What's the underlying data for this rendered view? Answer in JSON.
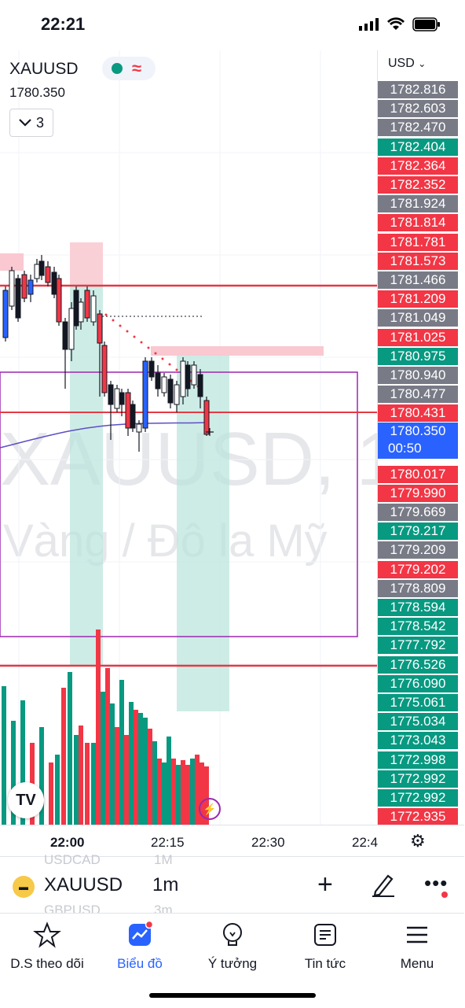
{
  "status_bar": {
    "time": "22:21"
  },
  "symbol": {
    "name": "XAUUSD",
    "price": "1780.350",
    "collapse_label": "3",
    "status_dot_color": "#089981",
    "status_wave_icon": "≈"
  },
  "scale": {
    "currency": "USD",
    "labels": [
      {
        "text": "1782.816",
        "color": "#787b86"
      },
      {
        "text": "1782.603",
        "color": "#787b86"
      },
      {
        "text": "1782.470",
        "color": "#787b86"
      },
      {
        "text": "1782.404",
        "color": "#089981"
      },
      {
        "text": "1782.364",
        "color": "#f23645"
      },
      {
        "text": "1782.352",
        "color": "#f23645"
      },
      {
        "text": "1781.924",
        "color": "#787b86"
      },
      {
        "text": "1781.814",
        "color": "#f23645"
      },
      {
        "text": "1781.781",
        "color": "#f23645"
      },
      {
        "text": "1781.573",
        "color": "#f23645"
      },
      {
        "text": "1781.466",
        "color": "#787b86"
      },
      {
        "text": "1781.209",
        "color": "#f23645"
      },
      {
        "text": "1781.049",
        "color": "#787b86"
      },
      {
        "text": "1781.025",
        "color": "#f23645"
      },
      {
        "text": "1780.975",
        "color": "#089981"
      },
      {
        "text": "1780.940",
        "color": "#787b86"
      },
      {
        "text": "1780.477",
        "color": "#787b86"
      },
      {
        "text": "1780.431",
        "color": "#f23645"
      }
    ],
    "current": {
      "price": "1780.350",
      "countdown": "00:50",
      "color": "#2962ff"
    },
    "labels_below": [
      {
        "text": "1780.017",
        "color": "#f23645"
      },
      {
        "text": "1779.990",
        "color": "#f23645"
      },
      {
        "text": "1779.669",
        "color": "#787b86"
      },
      {
        "text": "1779.217",
        "color": "#089981"
      },
      {
        "text": "1779.209",
        "color": "#787b86"
      },
      {
        "text": "1779.202",
        "color": "#f23645"
      },
      {
        "text": "1778.809",
        "color": "#787b86"
      },
      {
        "text": "1778.594",
        "color": "#089981"
      },
      {
        "text": "1778.542",
        "color": "#089981"
      },
      {
        "text": "1777.792",
        "color": "#089981"
      },
      {
        "text": "1776.526",
        "color": "#089981"
      },
      {
        "text": "1776.090",
        "color": "#089981"
      },
      {
        "text": "1775.061",
        "color": "#089981"
      },
      {
        "text": "1775.034",
        "color": "#089981"
      },
      {
        "text": "1773.043",
        "color": "#089981"
      },
      {
        "text": "1772.998",
        "color": "#089981"
      },
      {
        "text": "1772.992",
        "color": "#089981"
      },
      {
        "text": "1772.992",
        "color": "#089981"
      },
      {
        "text": "1772.935",
        "color": "#f23645"
      }
    ]
  },
  "watermark": {
    "line1": "XAUUSD, 1",
    "line2": "Vàng / Đô la Mỹ"
  },
  "time_axis": [
    "22:00",
    "22:15",
    "22:30",
    "22:4"
  ],
  "toolbar": {
    "symbol": "XAUUSD",
    "interval": "1m",
    "ghost_above": "USDCAD",
    "ghost_above_interval": "1M",
    "ghost_below": "GBPUSD",
    "ghost_below_interval": "3m"
  },
  "nav": [
    {
      "label": "D.S theo dõi",
      "icon": "star-icon"
    },
    {
      "label": "Biểu đồ",
      "icon": "chart-icon"
    },
    {
      "label": "Ý tưởng",
      "icon": "lightbulb-icon"
    },
    {
      "label": "Tin tức",
      "icon": "news-icon"
    },
    {
      "label": "Menu",
      "icon": "hamburger-icon"
    }
  ],
  "colors": {
    "up": "#089981",
    "down": "#f23645",
    "blue_candle": "#2962ff",
    "accent": "#2962ff"
  }
}
